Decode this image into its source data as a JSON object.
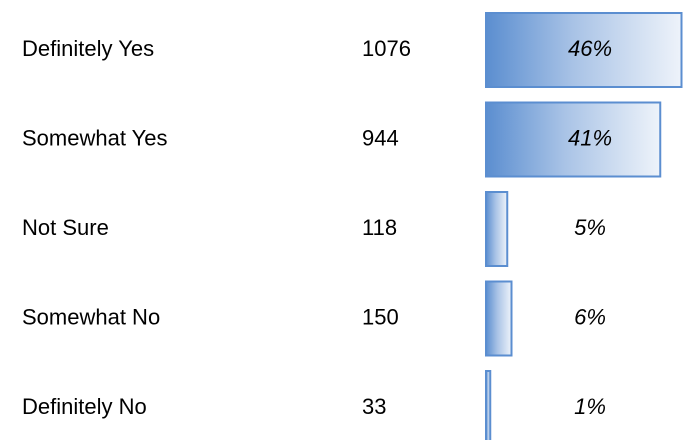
{
  "chart_data": {
    "type": "bar",
    "categories": [
      "Definitely Yes",
      "Somewhat Yes",
      "Not Sure",
      "Somewhat No",
      "Definitely No"
    ],
    "counts": [
      1076,
      944,
      118,
      150,
      33
    ],
    "values": [
      46,
      41,
      5,
      6,
      1
    ],
    "value_labels": [
      "46%",
      "41%",
      "5%",
      "6%",
      "1%"
    ],
    "color": "#5b8ed0"
  }
}
